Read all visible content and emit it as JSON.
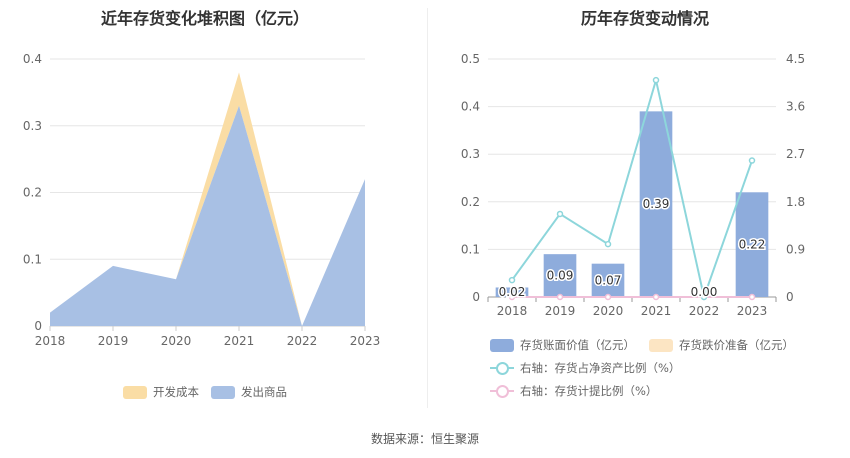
{
  "left_chart": {
    "title": "近年存货变化堆积图（亿元）",
    "legend": [
      {
        "label": "开发成本",
        "color": "#FADDA5"
      },
      {
        "label": "发出商品",
        "color": "#A8C0E4"
      }
    ]
  },
  "right_chart": {
    "title": "历年存货变动情况",
    "legend": [
      {
        "label": "存货账面价值（亿元）",
        "color": "#8EACDC"
      },
      {
        "label": "存货跌价准备（亿元）",
        "color": "#FCE5C3"
      },
      {
        "label": "右轴：存货占净资产比例（%）",
        "color": "#8DD6DB"
      },
      {
        "label": "右轴：存货计提比例（%）",
        "color": "#F0BFD8"
      }
    ]
  },
  "source": "数据来源：恒生聚源",
  "chart_data": [
    {
      "type": "area",
      "stacked": true,
      "title": "近年存货变化堆积图（亿元）",
      "x": [
        "2018",
        "2019",
        "2020",
        "2021",
        "2022",
        "2023"
      ],
      "series": [
        {
          "name": "发出商品",
          "values": [
            0.02,
            0.09,
            0.07,
            0.33,
            0.0,
            0.22
          ],
          "color": "#A8C0E4"
        },
        {
          "name": "开发成本",
          "values": [
            0.0,
            0.0,
            0.0,
            0.05,
            0.0,
            0.0
          ],
          "color": "#FADDA5"
        }
      ],
      "ylim": [
        0,
        0.4
      ],
      "yticks": [
        "0",
        "0.1",
        "0.2",
        "0.3",
        "0.4"
      ],
      "grid": true,
      "legend_position": "bottom"
    },
    {
      "type": "bar",
      "title": "历年存货变动情况",
      "categories": [
        "2018",
        "2019",
        "2020",
        "2021",
        "2022",
        "2023"
      ],
      "series": [
        {
          "name": "存货账面价值（亿元）",
          "values": [
            0.02,
            0.09,
            0.07,
            0.39,
            0.0,
            0.22
          ],
          "data_labels": [
            "0.02",
            "0.09",
            "0.07",
            "0.39",
            "0.00",
            "0.22"
          ],
          "color": "#8EACDC",
          "axis": "left"
        },
        {
          "name": "存货跌价准备（亿元）",
          "values": [
            0,
            0,
            0,
            0,
            0,
            0
          ],
          "color": "#FCE5C3",
          "axis": "left"
        },
        {
          "name": "右轴：存货占净资产比例（%）",
          "type": "line",
          "values": [
            0.32,
            1.57,
            1.0,
            4.1,
            0.0,
            2.58
          ],
          "color": "#8DD6DB",
          "axis": "right"
        },
        {
          "name": "右轴：存货计提比例（%）",
          "type": "line",
          "values": [
            0,
            0,
            0,
            0,
            0,
            0
          ],
          "color": "#F0BFD8",
          "axis": "right"
        }
      ],
      "ylim": [
        0,
        0.5
      ],
      "yticks": [
        "0",
        "0.1",
        "0.2",
        "0.3",
        "0.4",
        "0.5"
      ],
      "y2lim": [
        0,
        4.5
      ],
      "y2ticks": [
        "0",
        "0.9",
        "1.8",
        "2.7",
        "3.6",
        "4.5"
      ],
      "grid": true,
      "legend_position": "bottom"
    }
  ]
}
